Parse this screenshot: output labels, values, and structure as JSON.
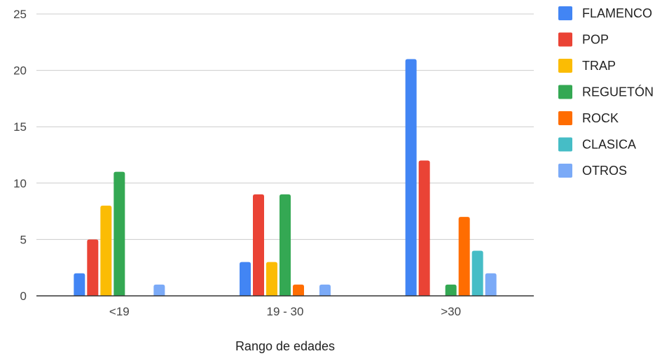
{
  "chart_data": {
    "type": "bar",
    "title": "",
    "xlabel": "Rango de edades",
    "ylabel": "",
    "ylim": [
      0,
      25
    ],
    "yticks": [
      0,
      5,
      10,
      15,
      20,
      25
    ],
    "grid": true,
    "legend_position": "right",
    "categories": [
      "<19",
      "19 - 30",
      ">30"
    ],
    "series": [
      {
        "name": "FLAMENCO",
        "color": "#4285F4",
        "values": [
          2,
          3,
          21
        ]
      },
      {
        "name": "POP",
        "color": "#EA4335",
        "values": [
          5,
          9,
          12
        ]
      },
      {
        "name": "TRAP",
        "color": "#FBBC04",
        "values": [
          8,
          3,
          0
        ]
      },
      {
        "name": "REGUETÓN",
        "color": "#34A853",
        "values": [
          11,
          9,
          1
        ]
      },
      {
        "name": "ROCK",
        "color": "#FF6D01",
        "values": [
          0,
          1,
          7
        ]
      },
      {
        "name": "CLASICA",
        "color": "#46BDC6",
        "values": [
          0,
          0,
          4
        ]
      },
      {
        "name": "OTROS",
        "color": "#7BAAF7",
        "values": [
          1,
          1,
          2
        ]
      }
    ]
  }
}
